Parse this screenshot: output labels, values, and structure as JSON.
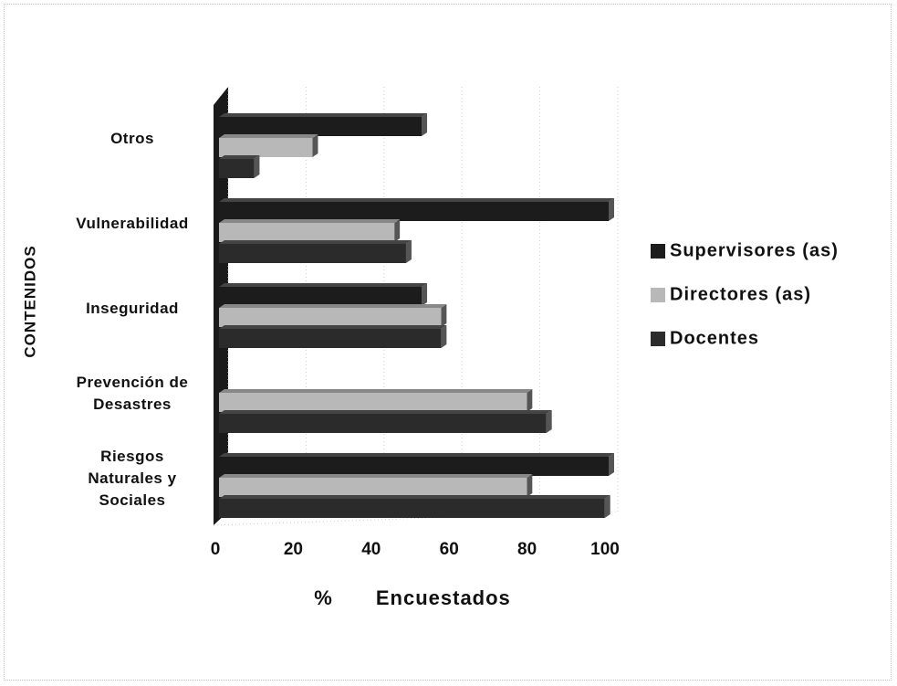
{
  "chart_data": {
    "type": "bar",
    "orientation": "horizontal",
    "categories": [
      "Riesgos Naturales y Sociales",
      "Prevención de Desastres",
      "Inseguridad",
      "Vulnerabilidad",
      "Otros"
    ],
    "series": [
      {
        "name": "Supervisores (as)",
        "color": "#1c1c1c",
        "values": [
          100,
          0,
          52,
          100,
          52
        ]
      },
      {
        "name": "Directores (as)",
        "color": "#b8b8b8",
        "values": [
          79,
          79,
          57,
          45,
          24
        ]
      },
      {
        "name": "Docentes",
        "color": "#2b2b2b",
        "values": [
          99,
          84,
          57,
          48,
          9
        ]
      }
    ],
    "xlabel": "% Encuestados",
    "ylabel": "CONTENIDOS",
    "xlim": [
      0,
      100
    ],
    "xticks": [
      0,
      20,
      40,
      60,
      80,
      100
    ],
    "grid": true,
    "legend": "right"
  }
}
